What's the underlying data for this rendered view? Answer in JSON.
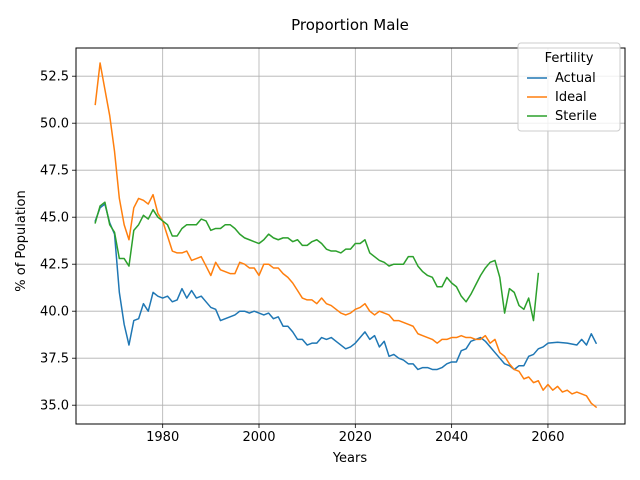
{
  "chart_data": {
    "type": "line",
    "title": "Proportion Male",
    "xlabel": "Years",
    "ylabel": "% of Population",
    "xlim": [
      1962,
      2076
    ],
    "ylim": [
      34.0,
      54.0
    ],
    "xticks": [
      1980,
      2000,
      2020,
      2040,
      2060
    ],
    "yticks": [
      35.0,
      37.5,
      40.0,
      42.5,
      45.0,
      47.5,
      50.0,
      52.5
    ],
    "ytick_labels": [
      "35.0",
      "37.5",
      "40.0",
      "42.5",
      "45.0",
      "47.5",
      "50.0",
      "52.5"
    ],
    "grid": true,
    "legend": {
      "title": "Fertility",
      "position": "top-right"
    },
    "series": [
      {
        "name": "Actual",
        "color": "#1f77b4",
        "points": [
          [
            1966,
            44.8
          ],
          [
            1967,
            45.5
          ],
          [
            1968,
            45.7
          ],
          [
            1969,
            44.7
          ],
          [
            1970,
            44.1
          ],
          [
            1971,
            41.0
          ],
          [
            1972,
            39.3
          ],
          [
            1973,
            38.2
          ],
          [
            1974,
            39.5
          ],
          [
            1975,
            39.6
          ],
          [
            1976,
            40.4
          ],
          [
            1977,
            40.0
          ],
          [
            1978,
            41.0
          ],
          [
            1979,
            40.8
          ],
          [
            1980,
            40.7
          ],
          [
            1981,
            40.8
          ],
          [
            1982,
            40.5
          ],
          [
            1983,
            40.6
          ],
          [
            1984,
            41.2
          ],
          [
            1985,
            40.7
          ],
          [
            1986,
            41.1
          ],
          [
            1987,
            40.7
          ],
          [
            1988,
            40.8
          ],
          [
            1989,
            40.5
          ],
          [
            1990,
            40.2
          ],
          [
            1991,
            40.1
          ],
          [
            1992,
            39.5
          ],
          [
            1993,
            39.6
          ],
          [
            1994,
            39.7
          ],
          [
            1995,
            39.8
          ],
          [
            1996,
            40.0
          ],
          [
            1997,
            40.0
          ],
          [
            1998,
            39.9
          ],
          [
            1999,
            40.0
          ],
          [
            2000,
            39.9
          ],
          [
            2001,
            39.8
          ],
          [
            2002,
            39.9
          ],
          [
            2003,
            39.6
          ],
          [
            2004,
            39.7
          ],
          [
            2005,
            39.2
          ],
          [
            2006,
            39.2
          ],
          [
            2007,
            38.9
          ],
          [
            2008,
            38.5
          ],
          [
            2009,
            38.5
          ],
          [
            2010,
            38.2
          ],
          [
            2011,
            38.3
          ],
          [
            2012,
            38.3
          ],
          [
            2013,
            38.6
          ],
          [
            2014,
            38.5
          ],
          [
            2015,
            38.6
          ],
          [
            2016,
            38.4
          ],
          [
            2017,
            38.2
          ],
          [
            2018,
            38.0
          ],
          [
            2019,
            38.1
          ],
          [
            2020,
            38.3
          ],
          [
            2021,
            38.6
          ],
          [
            2022,
            38.9
          ],
          [
            2023,
            38.5
          ],
          [
            2024,
            38.7
          ],
          [
            2025,
            38.1
          ],
          [
            2026,
            38.4
          ],
          [
            2027,
            37.6
          ],
          [
            2028,
            37.7
          ],
          [
            2029,
            37.5
          ],
          [
            2030,
            37.4
          ],
          [
            2031,
            37.2
          ],
          [
            2032,
            37.2
          ],
          [
            2033,
            36.9
          ],
          [
            2034,
            37.0
          ],
          [
            2035,
            37.0
          ],
          [
            2036,
            36.9
          ],
          [
            2037,
            36.9
          ],
          [
            2038,
            37.0
          ],
          [
            2039,
            37.2
          ],
          [
            2040,
            37.3
          ],
          [
            2041,
            37.3
          ],
          [
            2042,
            37.9
          ],
          [
            2043,
            38.0
          ],
          [
            2044,
            38.4
          ],
          [
            2045,
            38.5
          ],
          [
            2046,
            38.6
          ],
          [
            2047,
            38.4
          ],
          [
            2048,
            38.1
          ],
          [
            2049,
            37.8
          ],
          [
            2050,
            37.5
          ],
          [
            2051,
            37.2
          ],
          [
            2052,
            37.1
          ],
          [
            2053,
            36.9
          ],
          [
            2054,
            37.1
          ],
          [
            2055,
            37.1
          ],
          [
            2056,
            37.6
          ],
          [
            2057,
            37.7
          ],
          [
            2058,
            38.0
          ],
          [
            2059,
            38.1
          ],
          [
            2060,
            38.3
          ],
          [
            2062,
            38.35
          ],
          [
            2064,
            38.3
          ],
          [
            2066,
            38.2
          ],
          [
            2067,
            38.5
          ],
          [
            2068,
            38.2
          ],
          [
            2069,
            38.8
          ],
          [
            2070,
            38.3
          ]
        ]
      },
      {
        "name": "Ideal",
        "color": "#ff7f0e",
        "points": [
          [
            1966,
            51.0
          ],
          [
            1967,
            53.2
          ],
          [
            1968,
            51.8
          ],
          [
            1969,
            50.4
          ],
          [
            1970,
            48.5
          ],
          [
            1971,
            46.0
          ],
          [
            1972,
            44.6
          ],
          [
            1973,
            43.8
          ],
          [
            1974,
            45.5
          ],
          [
            1975,
            46.0
          ],
          [
            1976,
            45.9
          ],
          [
            1977,
            45.7
          ],
          [
            1978,
            46.2
          ],
          [
            1979,
            45.2
          ],
          [
            1980,
            44.8
          ],
          [
            1981,
            44.0
          ],
          [
            1982,
            43.2
          ],
          [
            1983,
            43.1
          ],
          [
            1984,
            43.1
          ],
          [
            1985,
            43.2
          ],
          [
            1986,
            42.7
          ],
          [
            1987,
            42.8
          ],
          [
            1988,
            42.9
          ],
          [
            1989,
            42.4
          ],
          [
            1990,
            41.9
          ],
          [
            1991,
            42.6
          ],
          [
            1992,
            42.2
          ],
          [
            1993,
            42.1
          ],
          [
            1994,
            42.0
          ],
          [
            1995,
            42.0
          ],
          [
            1996,
            42.6
          ],
          [
            1997,
            42.5
          ],
          [
            1998,
            42.3
          ],
          [
            1999,
            42.3
          ],
          [
            2000,
            41.9
          ],
          [
            2001,
            42.5
          ],
          [
            2002,
            42.5
          ],
          [
            2003,
            42.3
          ],
          [
            2004,
            42.3
          ],
          [
            2005,
            42.0
          ],
          [
            2006,
            41.8
          ],
          [
            2007,
            41.5
          ],
          [
            2008,
            41.1
          ],
          [
            2009,
            40.7
          ],
          [
            2010,
            40.6
          ],
          [
            2011,
            40.6
          ],
          [
            2012,
            40.4
          ],
          [
            2013,
            40.7
          ],
          [
            2014,
            40.4
          ],
          [
            2015,
            40.3
          ],
          [
            2016,
            40.1
          ],
          [
            2017,
            39.9
          ],
          [
            2018,
            39.8
          ],
          [
            2019,
            39.9
          ],
          [
            2020,
            40.1
          ],
          [
            2021,
            40.2
          ],
          [
            2022,
            40.4
          ],
          [
            2023,
            40.0
          ],
          [
            2024,
            39.8
          ],
          [
            2025,
            40.0
          ],
          [
            2026,
            39.9
          ],
          [
            2027,
            39.8
          ],
          [
            2028,
            39.5
          ],
          [
            2029,
            39.5
          ],
          [
            2030,
            39.4
          ],
          [
            2031,
            39.3
          ],
          [
            2032,
            39.2
          ],
          [
            2033,
            38.8
          ],
          [
            2034,
            38.7
          ],
          [
            2035,
            38.6
          ],
          [
            2036,
            38.5
          ],
          [
            2037,
            38.3
          ],
          [
            2038,
            38.5
          ],
          [
            2039,
            38.5
          ],
          [
            2040,
            38.6
          ],
          [
            2041,
            38.6
          ],
          [
            2042,
            38.7
          ],
          [
            2043,
            38.6
          ],
          [
            2044,
            38.6
          ],
          [
            2045,
            38.5
          ],
          [
            2046,
            38.5
          ],
          [
            2047,
            38.7
          ],
          [
            2048,
            38.3
          ],
          [
            2049,
            38.5
          ],
          [
            2050,
            37.8
          ],
          [
            2051,
            37.6
          ],
          [
            2052,
            37.2
          ],
          [
            2053,
            36.9
          ],
          [
            2054,
            36.8
          ],
          [
            2055,
            36.4
          ],
          [
            2056,
            36.5
          ],
          [
            2057,
            36.2
          ],
          [
            2058,
            36.3
          ],
          [
            2059,
            35.8
          ],
          [
            2060,
            36.1
          ],
          [
            2061,
            35.8
          ],
          [
            2062,
            36.0
          ],
          [
            2063,
            35.7
          ],
          [
            2064,
            35.8
          ],
          [
            2065,
            35.6
          ],
          [
            2066,
            35.7
          ],
          [
            2067,
            35.6
          ],
          [
            2068,
            35.5
          ],
          [
            2069,
            35.1
          ],
          [
            2070,
            34.9
          ]
        ]
      },
      {
        "name": "Sterile",
        "color": "#2ca02c",
        "points": [
          [
            1966,
            44.7
          ],
          [
            1967,
            45.6
          ],
          [
            1968,
            45.8
          ],
          [
            1969,
            44.6
          ],
          [
            1970,
            44.2
          ],
          [
            1971,
            42.8
          ],
          [
            1972,
            42.8
          ],
          [
            1973,
            42.4
          ],
          [
            1974,
            44.3
          ],
          [
            1975,
            44.6
          ],
          [
            1976,
            45.1
          ],
          [
            1977,
            44.9
          ],
          [
            1978,
            45.4
          ],
          [
            1979,
            45.0
          ],
          [
            1980,
            44.8
          ],
          [
            1981,
            44.6
          ],
          [
            1982,
            44.0
          ],
          [
            1983,
            44.0
          ],
          [
            1984,
            44.4
          ],
          [
            1985,
            44.6
          ],
          [
            1986,
            44.6
          ],
          [
            1987,
            44.6
          ],
          [
            1988,
            44.9
          ],
          [
            1989,
            44.8
          ],
          [
            1990,
            44.3
          ],
          [
            1991,
            44.4
          ],
          [
            1992,
            44.4
          ],
          [
            1993,
            44.6
          ],
          [
            1994,
            44.6
          ],
          [
            1995,
            44.4
          ],
          [
            1996,
            44.1
          ],
          [
            1997,
            43.9
          ],
          [
            1998,
            43.8
          ],
          [
            1999,
            43.7
          ],
          [
            2000,
            43.6
          ],
          [
            2001,
            43.8
          ],
          [
            2002,
            44.1
          ],
          [
            2003,
            43.9
          ],
          [
            2004,
            43.8
          ],
          [
            2005,
            43.9
          ],
          [
            2006,
            43.9
          ],
          [
            2007,
            43.7
          ],
          [
            2008,
            43.8
          ],
          [
            2009,
            43.5
          ],
          [
            2010,
            43.5
          ],
          [
            2011,
            43.7
          ],
          [
            2012,
            43.8
          ],
          [
            2013,
            43.6
          ],
          [
            2014,
            43.3
          ],
          [
            2015,
            43.2
          ],
          [
            2016,
            43.2
          ],
          [
            2017,
            43.1
          ],
          [
            2018,
            43.3
          ],
          [
            2019,
            43.3
          ],
          [
            2020,
            43.6
          ],
          [
            2021,
            43.6
          ],
          [
            2022,
            43.8
          ],
          [
            2023,
            43.1
          ],
          [
            2024,
            42.9
          ],
          [
            2025,
            42.7
          ],
          [
            2026,
            42.6
          ],
          [
            2027,
            42.4
          ],
          [
            2028,
            42.5
          ],
          [
            2029,
            42.5
          ],
          [
            2030,
            42.5
          ],
          [
            2031,
            42.9
          ],
          [
            2032,
            42.9
          ],
          [
            2033,
            42.4
          ],
          [
            2034,
            42.1
          ],
          [
            2035,
            41.9
          ],
          [
            2036,
            41.8
          ],
          [
            2037,
            41.3
          ],
          [
            2038,
            41.3
          ],
          [
            2039,
            41.8
          ],
          [
            2040,
            41.5
          ],
          [
            2041,
            41.3
          ],
          [
            2042,
            40.8
          ],
          [
            2043,
            40.5
          ],
          [
            2044,
            40.9
          ],
          [
            2045,
            41.4
          ],
          [
            2046,
            41.9
          ],
          [
            2047,
            42.3
          ],
          [
            2048,
            42.6
          ],
          [
            2049,
            42.7
          ],
          [
            2050,
            41.8
          ],
          [
            2051,
            39.9
          ],
          [
            2052,
            41.2
          ],
          [
            2053,
            41.0
          ],
          [
            2054,
            40.3
          ],
          [
            2055,
            40.1
          ],
          [
            2056,
            40.7
          ],
          [
            2057,
            39.5
          ],
          [
            2058,
            42.0
          ]
        ]
      }
    ]
  }
}
